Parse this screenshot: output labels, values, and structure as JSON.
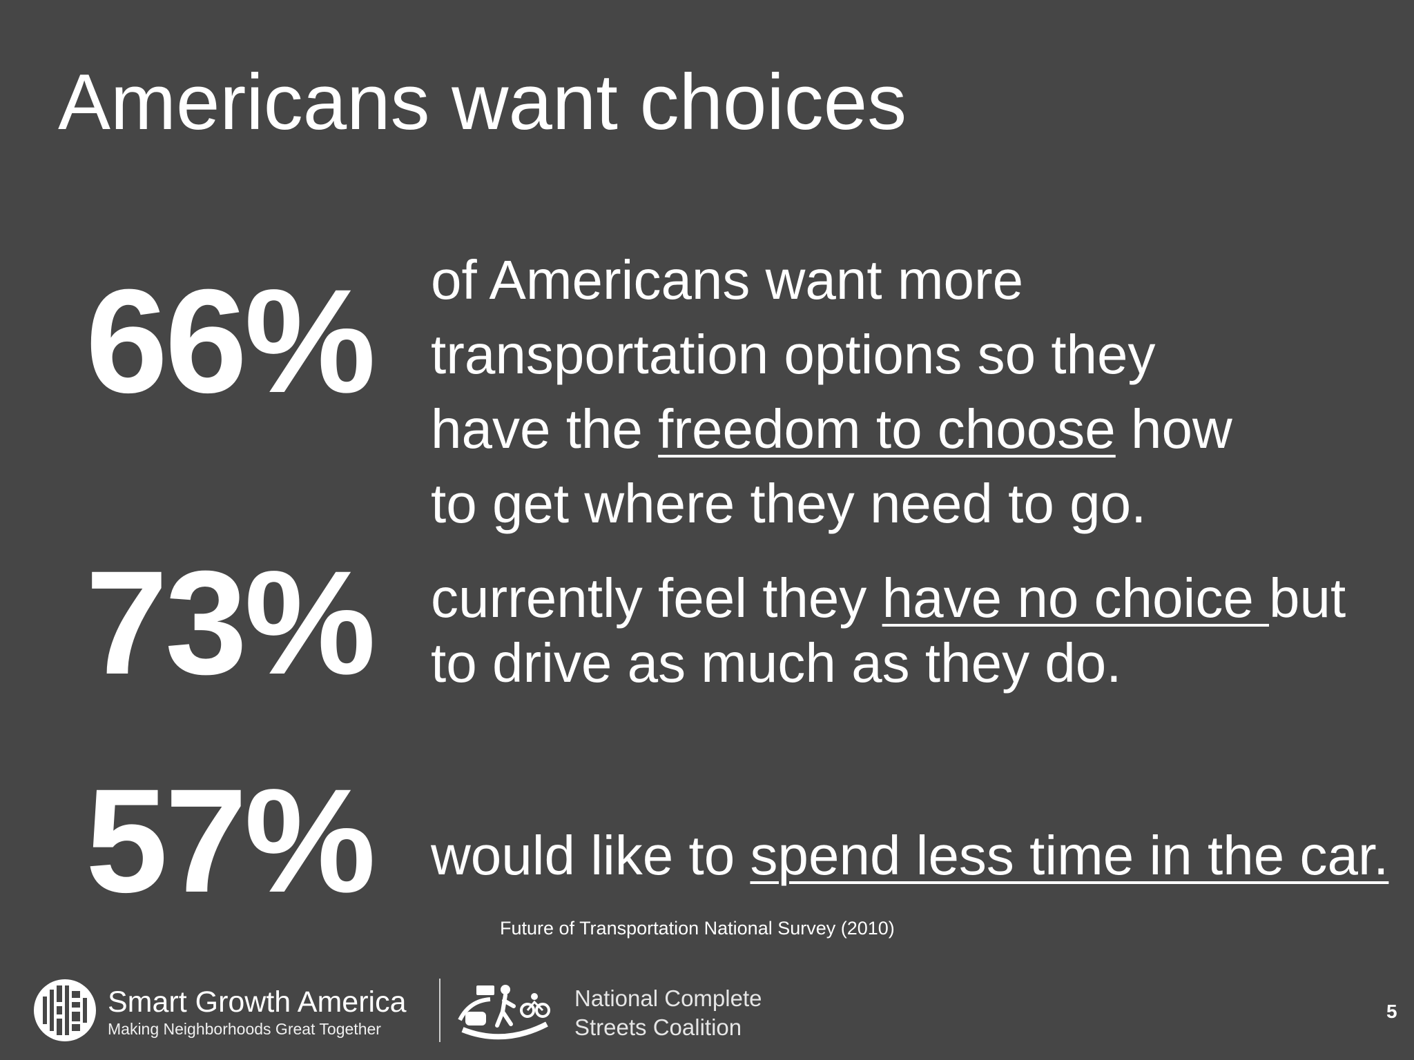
{
  "slide": {
    "title": "Americans want choices",
    "page_number": "5"
  },
  "stats": [
    {
      "percent": "66%",
      "line1": "of Americans want more",
      "line2": "transportation options so they",
      "line3_pre": "have the ",
      "line3_underline": "freedom to choose",
      "line3_post": " how",
      "line4": "to get where they need to go."
    },
    {
      "percent": "73%",
      "line1_pre": "currently feel they ",
      "line1_underline": "have no choice ",
      "line1_post": "but",
      "line2": "to drive as much as they do."
    },
    {
      "percent": "57%",
      "line1_pre": "would like to ",
      "line1_underline": "spend less time in the car."
    }
  ],
  "source": "Future of Transportation National Survey (2010)",
  "footer": {
    "sga_name": "Smart Growth America",
    "sga_tagline": "Making Neighborhoods Great Together",
    "ncsc_line1": "National Complete",
    "ncsc_line2": "Streets Coalition"
  }
}
